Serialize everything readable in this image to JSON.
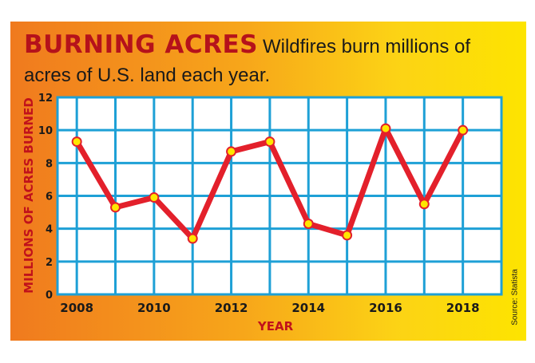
{
  "header": {
    "kicker": "BURNING ACRES",
    "subtitle": "Wildfires burn millions of acres of U.S. land each year."
  },
  "source": "Source: Statista",
  "colors": {
    "line": "#e3202b",
    "grid": "#1ea0d6",
    "marker_fill": "#ffe600",
    "marker_stroke": "#e3202b",
    "accent_text": "#c1121b"
  },
  "chart_data": {
    "type": "line",
    "title": "BURNING ACRES",
    "xlabel": "YEAR",
    "ylabel": "MILLIONS OF ACRES BURNED",
    "x": [
      2008,
      2009,
      2010,
      2011,
      2012,
      2013,
      2014,
      2015,
      2016,
      2017,
      2018
    ],
    "xticks": [
      "2008",
      "2010",
      "2012",
      "2014",
      "2016",
      "2018"
    ],
    "yticks": [
      "0",
      "2",
      "4",
      "6",
      "8",
      "10",
      "12"
    ],
    "xlim": [
      2007.5,
      2019
    ],
    "ylim": [
      0,
      12
    ],
    "grid": true,
    "series": [
      {
        "values": [
          9.3,
          5.3,
          5.9,
          3.4,
          8.7,
          9.3,
          4.3,
          3.6,
          10.1,
          5.5,
          10.0
        ]
      }
    ]
  }
}
